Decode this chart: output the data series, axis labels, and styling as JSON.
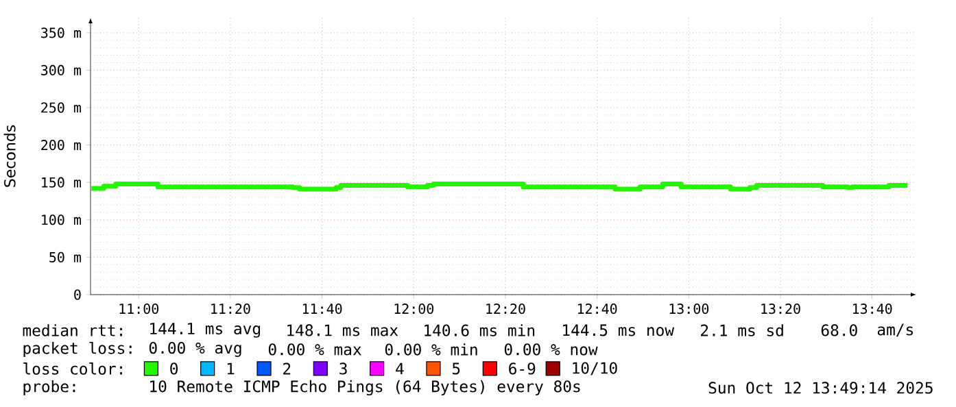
{
  "chart_data": {
    "type": "step",
    "ylabel": "Seconds",
    "legend_title": "loss color:",
    "xlim": [
      10.825,
      13.827
    ],
    "ylim": [
      0,
      370
    ],
    "xticks": [
      {
        "value": 11,
        "label": "11:00"
      },
      {
        "value": 11.3333,
        "label": "11:20"
      },
      {
        "value": 11.6667,
        "label": "11:40"
      },
      {
        "value": 12,
        "label": "12:00"
      },
      {
        "value": 12.3333,
        "label": "12:20"
      },
      {
        "value": 12.6667,
        "label": "12:40"
      },
      {
        "value": 13,
        "label": "13:00"
      },
      {
        "value": 13.3333,
        "label": "13:20"
      },
      {
        "value": 13.6667,
        "label": "13:40"
      }
    ],
    "yticks": [
      0,
      {
        "value": 50,
        "label": "50 m"
      },
      {
        "value": 100,
        "label": "100 m"
      },
      {
        "value": 150,
        "label": "150 m"
      },
      {
        "value": 200,
        "label": "200 m"
      },
      {
        "value": 250,
        "label": "250 m"
      },
      {
        "value": 300,
        "label": "300 m"
      },
      {
        "value": 350,
        "label": "350 m"
      }
    ],
    "grid": true,
    "legend": "bottom",
    "series": [
      {
        "name": "0",
        "color": "#26f500",
        "x": [
          10.828,
          10.873,
          10.917,
          11.07,
          11.56,
          11.585,
          11.718,
          11.735,
          11.978,
          12.05,
          12.072,
          12.398,
          12.732,
          12.823,
          12.905,
          12.972,
          13.152,
          13.222,
          13.247,
          13.313,
          13.487,
          13.578,
          13.595,
          13.728,
          13.795
        ],
        "values": [
          142,
          145,
          148,
          144,
          143,
          141,
          143,
          146,
          144,
          146,
          148,
          144,
          141,
          144,
          148,
          144,
          141,
          143,
          146,
          146,
          144,
          143,
          144,
          146,
          146
        ]
      },
      {
        "name": "1",
        "color": "#00b8ff"
      },
      {
        "name": "2",
        "color": "#0059ff"
      },
      {
        "name": "3",
        "color": "#7e00ff"
      },
      {
        "name": "4",
        "color": "#ff00ff"
      },
      {
        "name": "5",
        "color": "#ff5500"
      },
      {
        "name": "6-9",
        "color": "#ff0000"
      },
      {
        "name": "10/10",
        "color": "#a10000"
      }
    ],
    "annotations": [
      "median rtt:",
      "144.1 ms avg",
      "148.1 ms max",
      "140.6 ms min",
      "144.5 ms now",
      "2.1 ms sd",
      "68.0",
      "am/s",
      "packet loss:",
      "0.00 % avg",
      "0.00 % max",
      "0.00 % min",
      "0.00 % now",
      "probe:",
      "10 Remote ICMP Echo Pings (64 Bytes) every 80s",
      "Sun Oct 12 13:49:14 2025"
    ]
  }
}
